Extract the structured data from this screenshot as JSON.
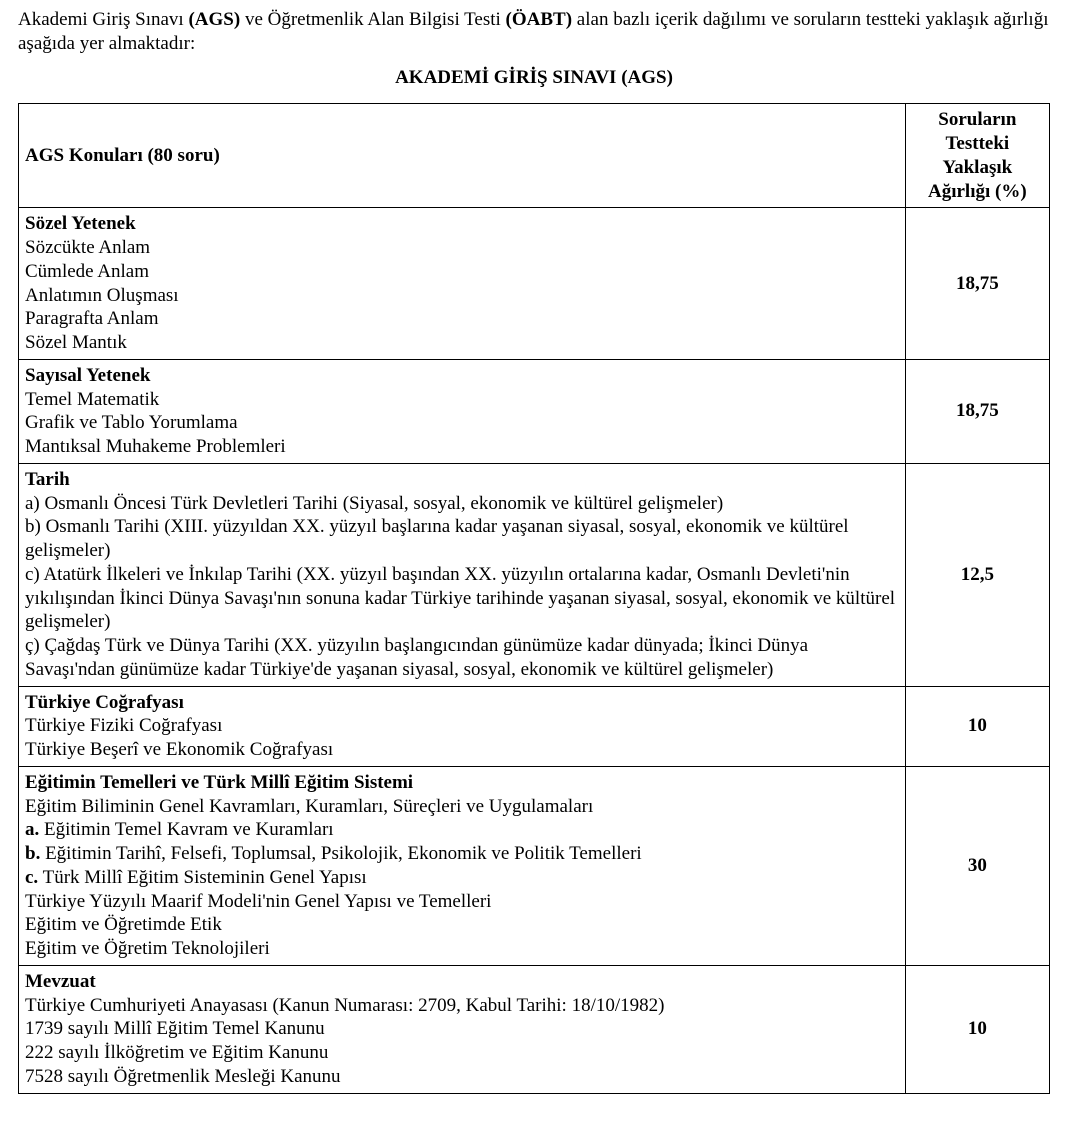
{
  "intro": {
    "prefix": "Akademi Giriş Sınavı ",
    "abbr1": "(AGS)",
    "mid1": " ve Öğretmenlik Alan Bilgisi Testi ",
    "abbr2": "(ÖABT)",
    "suffix": " alan bazlı içerik dağılımı ve soruların testteki yaklaşık ağırlığı aşağıda yer almaktadır:"
  },
  "title": "AKADEMİ GİRİŞ SINAVI (AGS)",
  "table": {
    "header_left": "AGS Konuları (80 soru)",
    "header_right": "Soruların Testteki Yaklaşık Ağırlığı (%)",
    "rows": [
      {
        "heading": "Sözel Yetenek",
        "lines": [
          "Sözcükte Anlam",
          "Cümlede Anlam",
          "Anlatımın Oluşması",
          "Paragrafta Anlam",
          "Sözel Mantık"
        ],
        "weight": "18,75"
      },
      {
        "heading": "Sayısal Yetenek",
        "lines": [
          "Temel Matematik",
          "Grafik ve Tablo Yorumlama",
          "Mantıksal Muhakeme Problemleri"
        ],
        "weight": "18,75"
      },
      {
        "heading": "Tarih",
        "lines": [
          "a) Osmanlı Öncesi Türk Devletleri Tarihi (Siyasal, sosyal, ekonomik ve kültürel gelişmeler)",
          "b) Osmanlı Tarihi (XIII. yüzyıldan XX. yüzyıl başlarına kadar yaşanan siyasal, sosyal, ekonomik ve kültürel gelişmeler)",
          "c) Atatürk İlkeleri ve İnkılap Tarihi (XX. yüzyıl başından XX. yüzyılın ortalarına kadar, Osmanlı Devleti'nin yıkılışından İkinci Dünya Savaşı'nın sonuna kadar Türkiye tarihinde yaşanan siyasal, sosyal, ekonomik ve kültürel gelişmeler)",
          "ç) Çağdaş Türk ve Dünya Tarihi (XX. yüzyılın başlangıcından günümüze kadar dünyada; İkinci Dünya Savaşı'ndan günümüze kadar Türkiye'de yaşanan siyasal, sosyal, ekonomik ve kültürel gelişmeler)"
        ],
        "weight": "12,5"
      },
      {
        "heading": "Türkiye Coğrafyası",
        "lines": [
          "Türkiye Fiziki Coğrafyası",
          "Türkiye Beşerî ve Ekonomik Coğrafyası"
        ],
        "weight": "10"
      },
      {
        "heading": "Eğitimin Temelleri ve Türk Millî Eğitim Sistemi",
        "mixed": [
          {
            "text": "Eğitim Biliminin Genel Kavramları, Kuramları, Süreçleri ve Uygulamaları"
          },
          {
            "bold_prefix": "a.",
            "text": " Eğitimin Temel Kavram ve Kuramları"
          },
          {
            "bold_prefix": "b.",
            "text": " Eğitimin Tarihî, Felsefi, Toplumsal, Psikolojik, Ekonomik ve Politik Temelleri"
          },
          {
            "bold_prefix": "c.",
            "text": " Türk Millî Eğitim Sisteminin Genel Yapısı"
          },
          {
            "text": "Türkiye Yüzyılı Maarif Modeli'nin Genel Yapısı ve Temelleri"
          },
          {
            "text": "Eğitim ve Öğretimde Etik"
          },
          {
            "text": "Eğitim ve Öğretim Teknolojileri"
          }
        ],
        "weight": "30"
      },
      {
        "heading": "Mevzuat",
        "lines": [
          "Türkiye Cumhuriyeti Anayasası (Kanun Numarası: 2709, Kabul Tarihi: 18/10/1982)",
          "1739 sayılı Millî Eğitim Temel Kanunu",
          "222 sayılı İlköğretim ve Eğitim Kanunu",
          "7528 sayılı Öğretmenlik Mesleği Kanunu"
        ],
        "weight": "10"
      }
    ]
  }
}
